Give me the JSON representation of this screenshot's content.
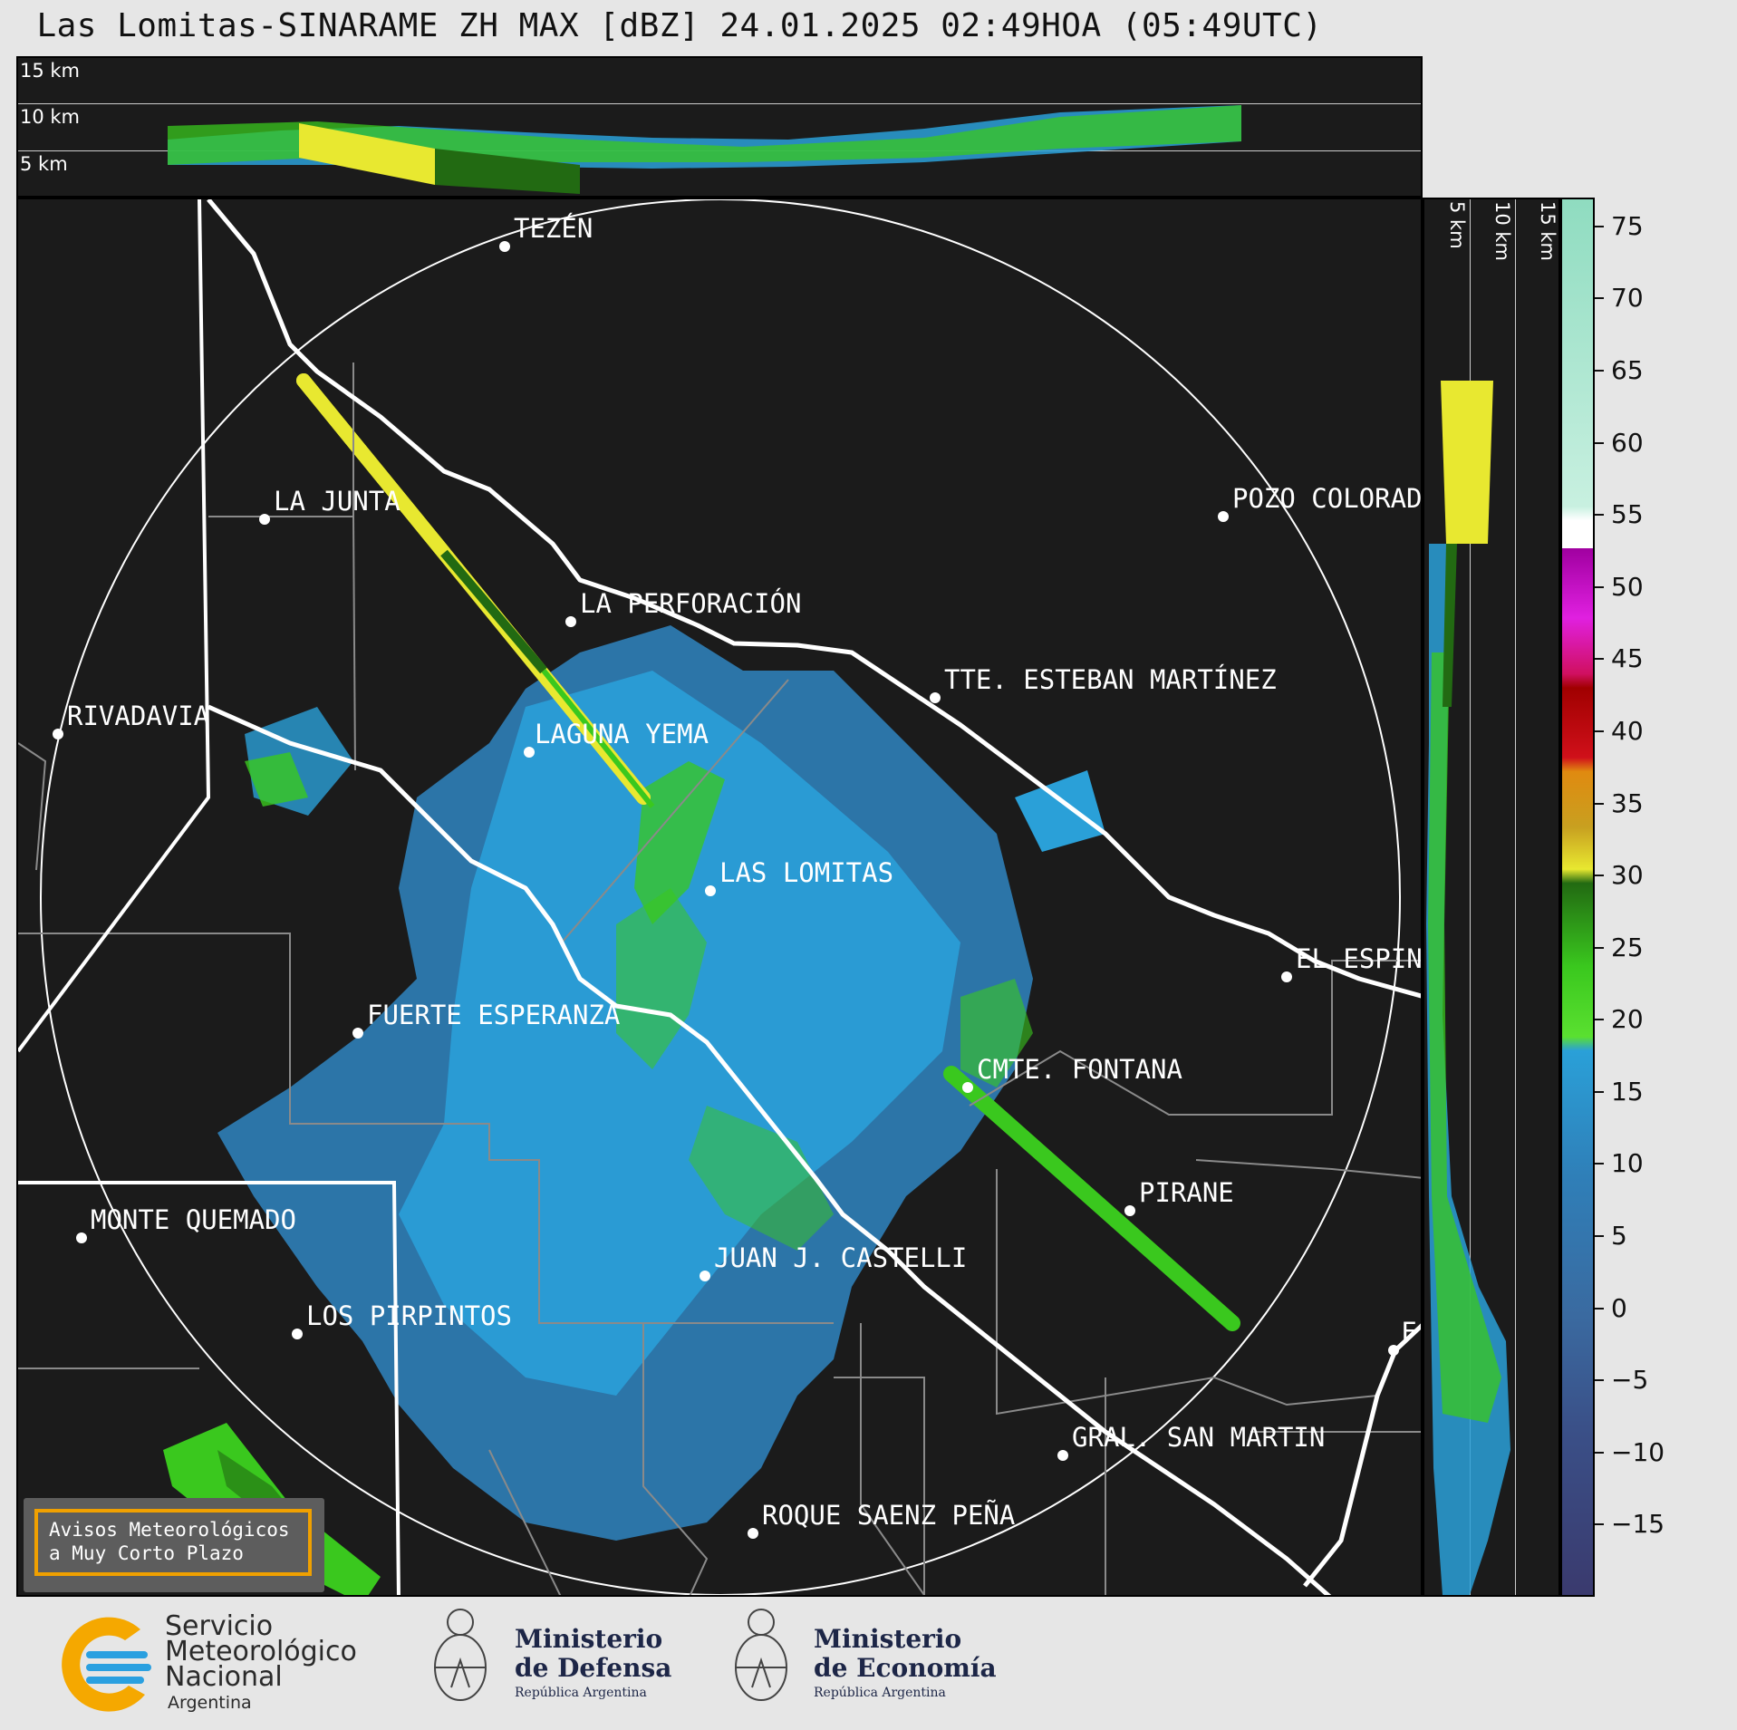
{
  "title": "Las Lomitas-SINARAME ZH MAX [dBZ] 24.01.2025 02:49HOA (05:49UTC)",
  "top_panel": {
    "levels": [
      "15 km",
      "10 km",
      "5 km"
    ]
  },
  "side_panel": {
    "levels": [
      "5 km",
      "10 km",
      "15 km"
    ]
  },
  "colorbar": {
    "ticks": [
      "75",
      "70",
      "65",
      "60",
      "55",
      "50",
      "45",
      "40",
      "35",
      "30",
      "25",
      "20",
      "15",
      "10",
      "5",
      "0",
      "−5",
      "−10",
      "−15"
    ],
    "min": -20,
    "max": 77,
    "unit": "dBZ",
    "colors": {
      "light_teal": "#8fdcc0",
      "white": "#ffffff",
      "magenta": "#d000d0",
      "red": "#d0101a",
      "orange": "#e08a10",
      "yellow": "#e8e830",
      "dark_green": "#226a12",
      "green": "#3ac81e",
      "light_blue": "#2aa0d8",
      "blue": "#2f7fb8",
      "navy": "#3a3a6e"
    }
  },
  "cities": [
    "TEZÉN",
    "LA JUNTA",
    "LA PERFORACIÓN",
    "POZO COLORAD",
    "TTE. ESTEBAN MARTÍNEZ",
    "RIVADAVIA",
    "LAGUNA YEMA",
    "LAS LOMITAS",
    "EL ESPIN",
    "FUERTE ESPERANZA",
    "CMTE. FONTANA",
    "PIRANE",
    "MONTE QUEMADO",
    "JUAN J. CASTELLI",
    "LOS PIRPINTOS",
    "F",
    "GRAL. SAN MARTIN",
    "ROQUE SAENZ PEÑA"
  ],
  "aviso": {
    "line1": "Avisos Meteorológicos",
    "line2": "a Muy Corto Plazo"
  },
  "logos": {
    "smn": {
      "line1": "Servicio",
      "line2": "Meteorológico",
      "line3": "Nacional",
      "line4": "Argentina"
    },
    "defensa": {
      "line1": "Ministerio",
      "line2": "de Defensa",
      "line3": "República Argentina"
    },
    "economia": {
      "line1": "Ministerio",
      "line2": "de Economía",
      "line3": "República Argentina"
    }
  }
}
